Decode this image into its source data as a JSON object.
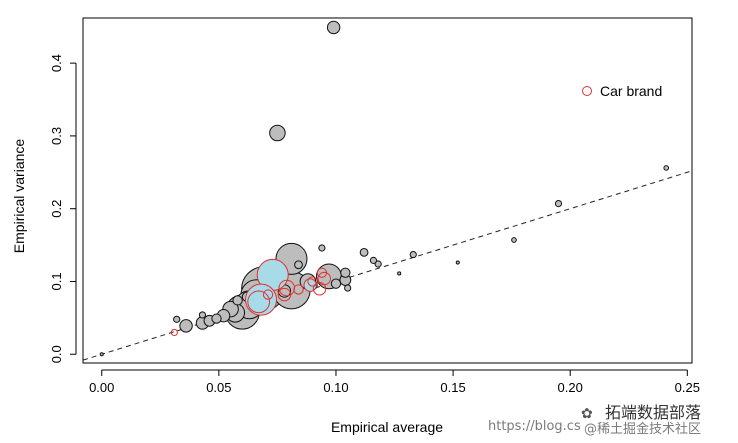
{
  "chart_data": {
    "type": "scatter",
    "title": "",
    "xlabel": "Empirical average",
    "ylabel": "Empirical variance",
    "xlim": [
      -0.008,
      0.252
    ],
    "ylim": [
      -0.012,
      0.462
    ],
    "xticks": [
      "0.00",
      "0.05",
      "0.10",
      "0.15",
      "0.20",
      "0.25"
    ],
    "yticks": [
      "0.0",
      "0.1",
      "0.2",
      "0.3",
      "0.4"
    ],
    "xtick_values": [
      0,
      0.05,
      0.1,
      0.15,
      0.2,
      0.25
    ],
    "ytick_values": [
      0,
      0.1,
      0.2,
      0.3,
      0.4
    ],
    "legend": {
      "label": "Car brand",
      "position": "top-right",
      "marker_color": "#e03030"
    },
    "reference_line": {
      "style": "dashed",
      "slope": 1,
      "intercept": 0
    },
    "series": [
      {
        "name": "",
        "fill_color": "#bdbdbd",
        "points": [
          {
            "x": 0.099,
            "y": 0.449,
            "size": 4
          },
          {
            "x": 0.075,
            "y": 0.304,
            "size": 5
          },
          {
            "x": 0.241,
            "y": 0.256,
            "size": 1.5
          },
          {
            "x": 0.195,
            "y": 0.207,
            "size": 2
          },
          {
            "x": 0.176,
            "y": 0.157,
            "size": 1.5
          },
          {
            "x": 0.152,
            "y": 0.126,
            "size": 1
          },
          {
            "x": 0.133,
            "y": 0.137,
            "size": 2
          },
          {
            "x": 0.127,
            "y": 0.111,
            "size": 1
          },
          {
            "x": 0.118,
            "y": 0.124,
            "size": 2
          },
          {
            "x": 0.116,
            "y": 0.129,
            "size": 2
          },
          {
            "x": 0.112,
            "y": 0.14,
            "size": 2.5
          },
          {
            "x": 0.104,
            "y": 0.112,
            "size": 3
          },
          {
            "x": 0.104,
            "y": 0.102,
            "size": 3.5
          },
          {
            "x": 0.094,
            "y": 0.146,
            "size": 2
          },
          {
            "x": 0.084,
            "y": 0.123,
            "size": 2.5
          },
          {
            "x": 0.081,
            "y": 0.131,
            "size": 10
          },
          {
            "x": 0.081,
            "y": 0.088,
            "size": 12
          },
          {
            "x": 0.097,
            "y": 0.107,
            "size": 8
          },
          {
            "x": 0.088,
            "y": 0.1,
            "size": 5
          },
          {
            "x": 0.069,
            "y": 0.09,
            "size": 14
          },
          {
            "x": 0.066,
            "y": 0.081,
            "size": 10
          },
          {
            "x": 0.063,
            "y": 0.068,
            "size": 9
          },
          {
            "x": 0.06,
            "y": 0.058,
            "size": 11
          },
          {
            "x": 0.057,
            "y": 0.057,
            "size": 6
          },
          {
            "x": 0.055,
            "y": 0.062,
            "size": 5
          },
          {
            "x": 0.052,
            "y": 0.053,
            "size": 4
          },
          {
            "x": 0.049,
            "y": 0.049,
            "size": 3
          },
          {
            "x": 0.046,
            "y": 0.046,
            "size": 3.5
          },
          {
            "x": 0.043,
            "y": 0.043,
            "size": 4
          },
          {
            "x": 0.043,
            "y": 0.054,
            "size": 2
          },
          {
            "x": 0.036,
            "y": 0.039,
            "size": 4
          },
          {
            "x": 0.032,
            "y": 0.048,
            "size": 2
          },
          {
            "x": 0.058,
            "y": 0.074,
            "size": 3
          },
          {
            "x": 0.062,
            "y": 0.079,
            "size": 3
          },
          {
            "x": 0.105,
            "y": 0.091,
            "size": 2
          },
          {
            "x": 0.1,
            "y": 0.097,
            "size": 3
          },
          {
            "x": 0.078,
            "y": 0.087,
            "size": 4
          },
          {
            "x": 0.09,
            "y": 0.095,
            "size": 3
          },
          {
            "x": 0.0,
            "y": 0.0,
            "size": 1
          }
        ]
      },
      {
        "name": "Car brand",
        "stroke_color": "#e03030",
        "points": [
          {
            "x": 0.073,
            "y": 0.109,
            "size": 10,
            "fill": "#a8dbe8"
          },
          {
            "x": 0.068,
            "y": 0.075,
            "size": 10,
            "fill": "#a8dbe8"
          },
          {
            "x": 0.067,
            "y": 0.072,
            "size": 7
          },
          {
            "x": 0.079,
            "y": 0.091,
            "size": 5
          },
          {
            "x": 0.078,
            "y": 0.082,
            "size": 4
          },
          {
            "x": 0.089,
            "y": 0.095,
            "size": 4,
            "fill": "#a8dbe8"
          },
          {
            "x": 0.093,
            "y": 0.09,
            "size": 4
          },
          {
            "x": 0.095,
            "y": 0.104,
            "size": 4
          },
          {
            "x": 0.094,
            "y": 0.112,
            "size": 3
          },
          {
            "x": 0.09,
            "y": 0.1,
            "size": 3
          },
          {
            "x": 0.084,
            "y": 0.089,
            "size": 3
          },
          {
            "x": 0.071,
            "y": 0.082,
            "size": 3
          },
          {
            "x": 0.031,
            "y": 0.03,
            "size": 2
          }
        ]
      }
    ]
  },
  "watermark": {
    "url": "https://blog.cs",
    "brand": "拓端数据部落",
    "sub": "@稀土掘金技术社区"
  }
}
